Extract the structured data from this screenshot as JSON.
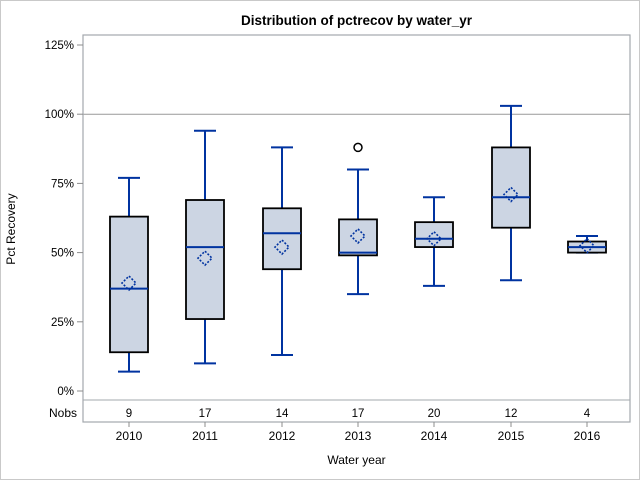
{
  "title": "Distribution of pctrecov by water_yr",
  "colors": {
    "box_fill": "#ccd5e3",
    "box_stroke": "#000000",
    "whisker": "#0033a0",
    "median": "#0033a0",
    "mean_marker": "#0033a0",
    "outlier_stroke": "#000000",
    "frame": "#a3a8ad",
    "reference_line": "#999999",
    "tick_mark": "#8c8c8c",
    "text": "#000000"
  },
  "chart_data": {
    "type": "box",
    "title": "Distribution of pctrecov by water_yr",
    "xlabel": "Water year",
    "ylabel": "Pct Recovery",
    "nobs_label": "Nobs",
    "legend": "none",
    "grid": "off",
    "y_axis": {
      "unit": "percent",
      "ticks": [
        {
          "value": 0,
          "label": "0%"
        },
        {
          "value": 25,
          "label": "25%"
        },
        {
          "value": 50,
          "label": "50%"
        },
        {
          "value": 75,
          "label": "75%"
        },
        {
          "value": 100,
          "label": "100%"
        },
        {
          "value": 125,
          "label": "125%"
        }
      ],
      "reference_line_value": 100
    },
    "categories": [
      "2010",
      "2011",
      "2012",
      "2013",
      "2014",
      "2015",
      "2016"
    ],
    "boxes": [
      {
        "category": "2010",
        "nobs": 9,
        "low": 7,
        "q1": 14,
        "median": 37,
        "q3": 63,
        "high": 77,
        "mean": 39,
        "outliers": []
      },
      {
        "category": "2011",
        "nobs": 17,
        "low": 10,
        "q1": 26,
        "median": 52,
        "q3": 69,
        "high": 94,
        "mean": 48,
        "outliers": []
      },
      {
        "category": "2012",
        "nobs": 14,
        "low": 13,
        "q1": 44,
        "median": 57,
        "q3": 66,
        "high": 88,
        "mean": 52,
        "outliers": []
      },
      {
        "category": "2013",
        "nobs": 17,
        "low": 35,
        "q1": 49,
        "median": 50,
        "q3": 62,
        "high": 80,
        "mean": 56,
        "outliers": [
          88
        ]
      },
      {
        "category": "2014",
        "nobs": 20,
        "low": 38,
        "q1": 52,
        "median": 55,
        "q3": 61,
        "high": 70,
        "mean": 55,
        "outliers": []
      },
      {
        "category": "2015",
        "nobs": 12,
        "low": 40,
        "q1": 59,
        "median": 70,
        "q3": 88,
        "high": 103,
        "mean": 71,
        "outliers": []
      },
      {
        "category": "2016",
        "nobs": 4,
        "low": 50,
        "q1": 50,
        "median": 52,
        "q3": 54,
        "high": 56,
        "mean": 52.5,
        "outliers": []
      }
    ]
  }
}
